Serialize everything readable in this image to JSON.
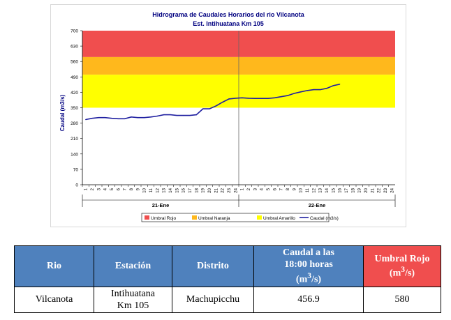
{
  "chart_data": {
    "type": "line",
    "title": "Hidrograma de Caudales Horarios del rio Vilcanota",
    "subtitle": "Est. Intihuatana Km 105",
    "ylabel": "Caudal  (m3/s)",
    "ylim": [
      0,
      700
    ],
    "yticks": [
      "0",
      "70",
      "140",
      "210",
      "280",
      "350",
      "420",
      "490",
      "560",
      "630",
      "700"
    ],
    "x_hour_labels": [
      "1",
      "2",
      "3",
      "4",
      "5",
      "6",
      "7",
      "8",
      "9",
      "10",
      "11",
      "12",
      "13",
      "14",
      "15",
      "16",
      "17",
      "18",
      "19",
      "20",
      "21",
      "22",
      "23",
      "24",
      "1",
      "2",
      "3",
      "4",
      "5",
      "6",
      "7",
      "8",
      "9",
      "10",
      "11",
      "12",
      "13",
      "14",
      "15",
      "16",
      "17",
      "18",
      "19",
      "20",
      "21",
      "22",
      "23",
      "24"
    ],
    "x_day_labels": [
      "21-Ene",
      "22-Ene"
    ],
    "bands": [
      {
        "name": "Umbral Rojo",
        "from": 580,
        "to": 700,
        "color": "#f04e4e"
      },
      {
        "name": "Umbral Naranja",
        "from": 500,
        "to": 580,
        "color": "#ffb81c"
      },
      {
        "name": "Umbral Amarillo",
        "from": 350,
        "to": 500,
        "color": "#ffff00"
      }
    ],
    "series": [
      {
        "name": "Caudal (m3/s)",
        "color": "#1f1fa0",
        "values": [
          296,
          302,
          305,
          305,
          302,
          300,
          300,
          308,
          305,
          305,
          308,
          312,
          318,
          318,
          315,
          315,
          315,
          318,
          345,
          345,
          358,
          375,
          390,
          393,
          395,
          393,
          392,
          392,
          392,
          395,
          400,
          405,
          415,
          422,
          428,
          432,
          432,
          438,
          450,
          456.9
        ]
      }
    ],
    "legend": [
      "Umbral Rojo",
      "Umbral Naranja",
      "Umbral Amarillo",
      "Caudal (m3/s)"
    ],
    "legend_position": "bottom",
    "grid": false
  },
  "table": {
    "headers": {
      "rio": "Rio",
      "estacion": "Estación",
      "distrito": "Distrito",
      "caudal_line1": "Caudal a las",
      "caudal_line2": "18:00 horas",
      "caudal_line3": "(m",
      "caudal_line3_end": "/s)",
      "umbral_line1": "Umbral Rojo",
      "umbral_line2": "(m",
      "umbral_line2_end": "/s)",
      "superscript": "3"
    },
    "row": {
      "rio": "Vilcanota",
      "estacion_line1": "Intihuatana",
      "estacion_line2": "Km 105",
      "distrito": "Machupicchu",
      "caudal": "456.9",
      "umbral": "580"
    },
    "colors": {
      "header": "#4f81bd",
      "header_red": "#f04e4e"
    }
  }
}
